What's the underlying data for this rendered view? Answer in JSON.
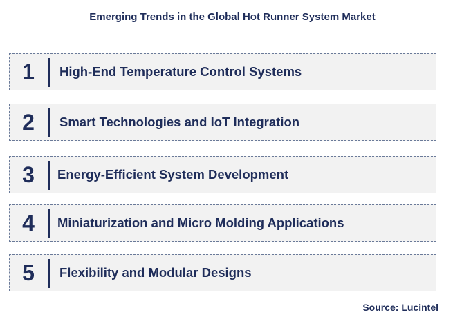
{
  "title": "Emerging Trends in the Global Hot Runner System Market",
  "trends": [
    {
      "number": "1",
      "label": "High-End Temperature Control Systems"
    },
    {
      "number": "2",
      "label": "Smart Technologies and IoT Integration"
    },
    {
      "number": "3",
      "label": "Energy-Efficient System Development"
    },
    {
      "number": "4",
      "label": "Miniaturization and Micro Molding Applications"
    },
    {
      "number": "5",
      "label": "Flexibility and Modular Designs"
    }
  ],
  "source": "Source: Lucintel",
  "colors": {
    "text": "#1f2d5a",
    "box_fill": "#f2f2f2",
    "box_border": "#6a7a99"
  }
}
